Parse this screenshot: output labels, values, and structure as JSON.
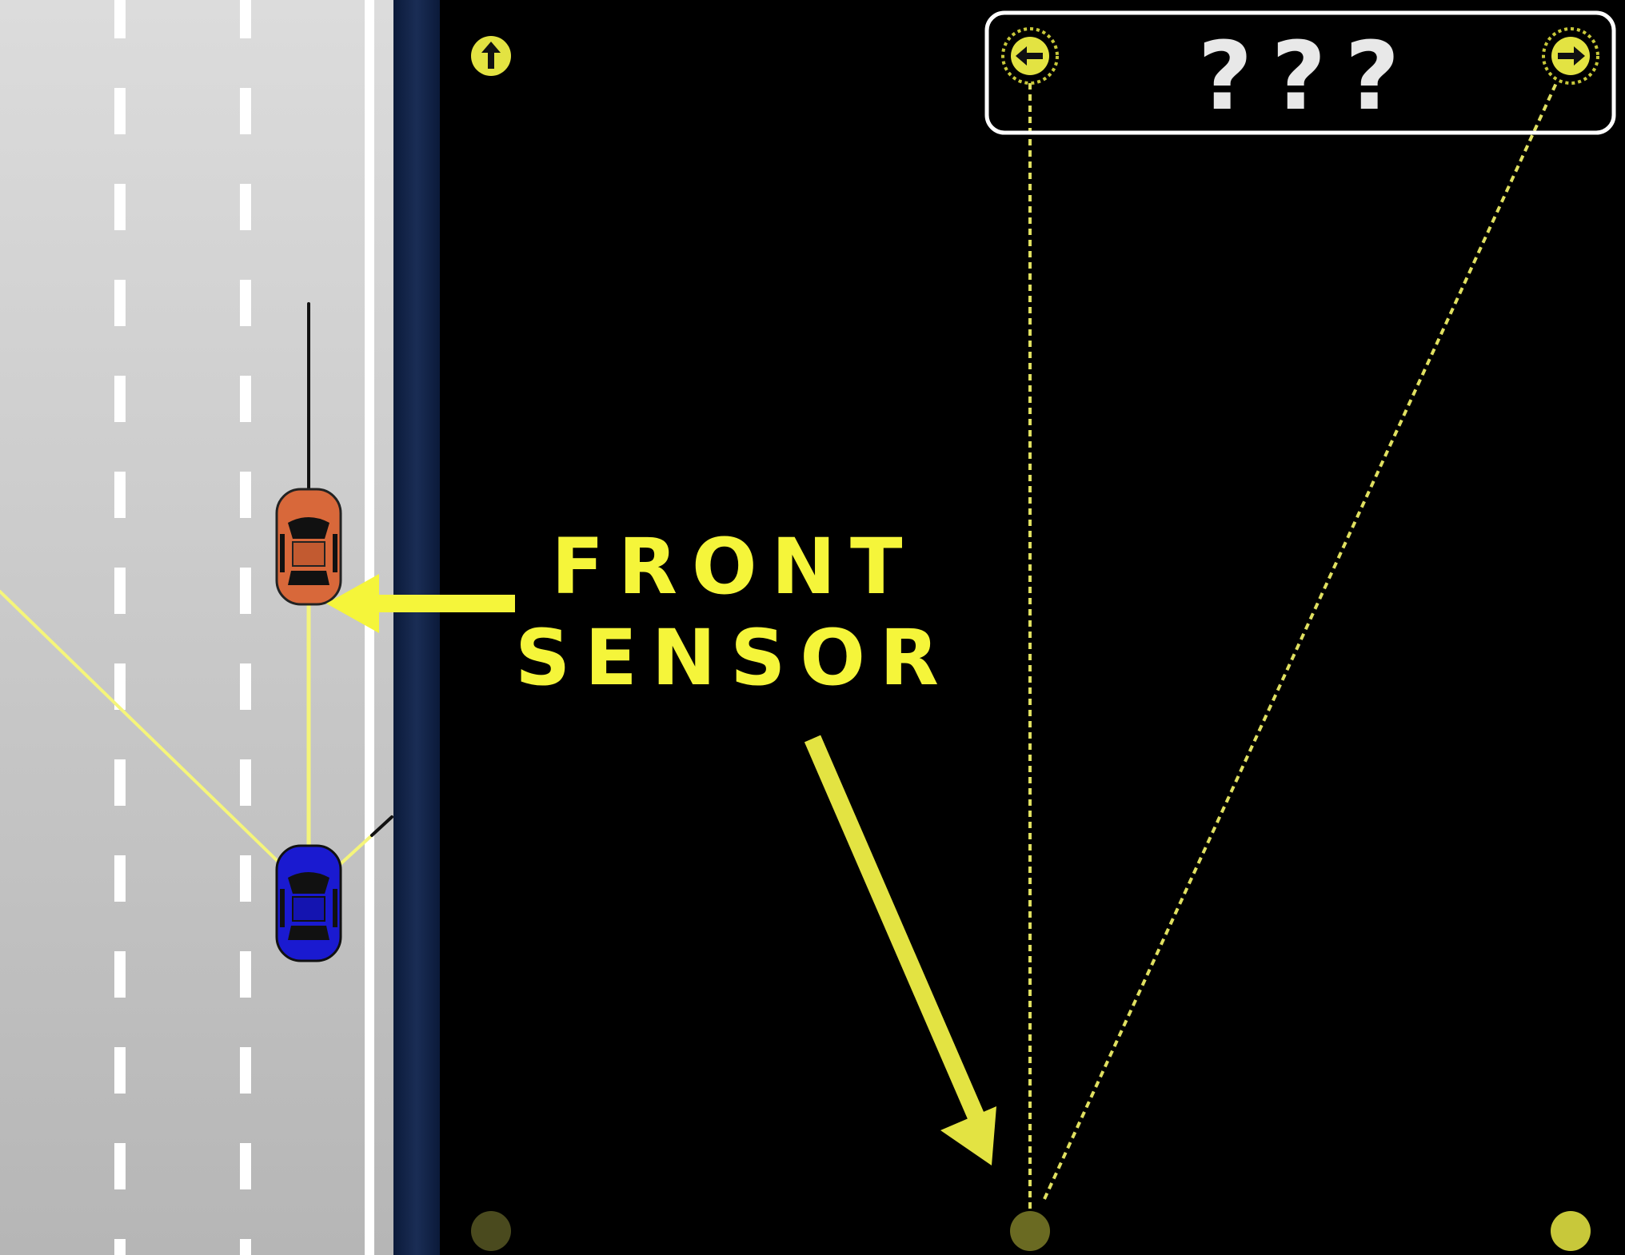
{
  "annotation": {
    "line1": "FRONT",
    "line2": "SENSOR",
    "color": "#f5f53a"
  },
  "output_panel": {
    "unknown_marks": [
      "?",
      "?",
      "?"
    ],
    "left_icon": "arrow-left-icon",
    "right_icon": "arrow-right-icon"
  },
  "network": {
    "forward_icon": "arrow-up-icon",
    "node_color": "#c8c83a",
    "node_dim_color": "#4a4a1e"
  },
  "road": {
    "surface_color": "#d6d6d6",
    "shoulder_color": "#0e1e40",
    "lane_mark_color": "#ffffff"
  },
  "cars": {
    "ego_color": "#1a1ad0",
    "traffic_color": "#d8683a",
    "sensor_color": "#f5f57a"
  }
}
